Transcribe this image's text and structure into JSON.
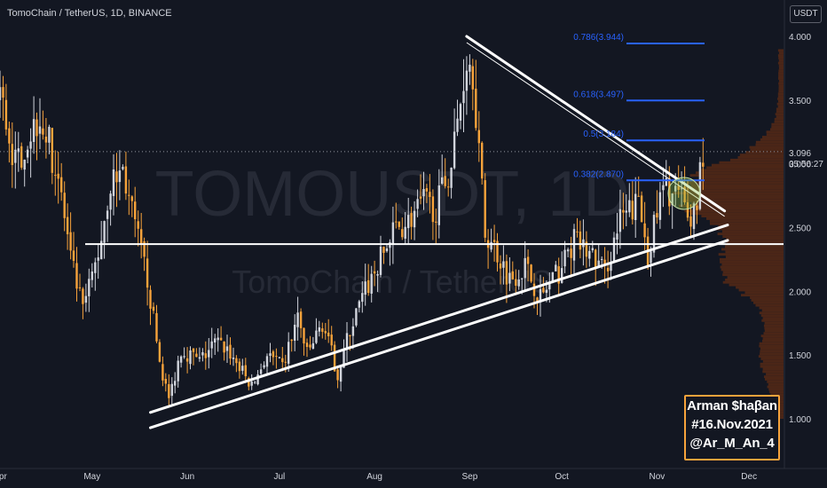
{
  "header": {
    "title": "TomoChain / TetherUS, 1D, BINANCE",
    "currency": "USDT"
  },
  "watermark": {
    "symbol": "TOMOUSDT, 1D",
    "name": "TomoChain / TetherUS"
  },
  "price_label": {
    "value": "3.096",
    "countdown": "05:56:27"
  },
  "signature": {
    "line1": "Arman $haβan",
    "line2": "#16.Nov.2021",
    "line3": "@Ar_M_An_4"
  },
  "colors": {
    "background": "#131722",
    "up": "#d1d4dc",
    "down": "#f7a33b",
    "fib": "#2962ff",
    "profile": "#5a2a15",
    "trend": "#ffffff"
  },
  "chart_data": {
    "type": "candlestick",
    "title": "TomoChain / TetherUS, 1D, BINANCE",
    "y_axis": {
      "ticks": [
        "4.000",
        "3.500",
        "3.000",
        "2.500",
        "2.000",
        "1.500",
        "1.000"
      ],
      "ylim": [
        0.7,
        4.4
      ],
      "unit": "USDT"
    },
    "x_axis": {
      "ticks": [
        "Apr",
        "May",
        "Jun",
        "Jul",
        "Aug",
        "Sep",
        "Oct",
        "Nov",
        "Dec"
      ]
    },
    "fib_levels": [
      {
        "label": "0.786(3.944)",
        "value": 3.944
      },
      {
        "label": "0.618(3.497)",
        "value": 3.497
      },
      {
        "label": "0.5(3.184)",
        "value": 3.184
      },
      {
        "label": "0.382(2.870)",
        "value": 2.87
      }
    ],
    "horizontal_level": 2.37,
    "last_price": 3.096,
    "trend_lines": [
      {
        "name": "support-outer",
        "from": [
          "2021-05-20",
          0.93
        ],
        "to": [
          "2021-11-24",
          2.4
        ]
      },
      {
        "name": "support-inner",
        "from": [
          "2021-05-20",
          1.05
        ],
        "to": [
          "2021-11-24",
          2.52
        ]
      },
      {
        "name": "resistance",
        "from": [
          "2021-08-31",
          4.0
        ],
        "to": [
          "2021-11-23",
          2.63
        ]
      }
    ],
    "anchors": [
      [
        "2021-03-24",
        3.3
      ],
      [
        "2021-04-01",
        3.55
      ],
      [
        "2021-04-06",
        3.0
      ],
      [
        "2021-04-14",
        3.4
      ],
      [
        "2021-04-20",
        2.9
      ],
      [
        "2021-04-24",
        2.25
      ],
      [
        "2021-04-28",
        1.85
      ],
      [
        "2021-05-03",
        2.3
      ],
      [
        "2021-05-07",
        2.85
      ],
      [
        "2021-05-11",
        2.95
      ],
      [
        "2021-05-15",
        2.5
      ],
      [
        "2021-05-19",
        2.1
      ],
      [
        "2021-05-23",
        1.45
      ],
      [
        "2021-05-26",
        1.15
      ],
      [
        "2021-05-30",
        1.55
      ],
      [
        "2021-06-05",
        1.45
      ],
      [
        "2021-06-10",
        1.6
      ],
      [
        "2021-06-14",
        1.55
      ],
      [
        "2021-06-18",
        1.4
      ],
      [
        "2021-06-22",
        1.25
      ],
      [
        "2021-06-27",
        1.5
      ],
      [
        "2021-07-02",
        1.4
      ],
      [
        "2021-07-07",
        1.8
      ],
      [
        "2021-07-10",
        1.5
      ],
      [
        "2021-07-15",
        1.75
      ],
      [
        "2021-07-20",
        1.35
      ],
      [
        "2021-07-24",
        1.7
      ],
      [
        "2021-07-29",
        2.0
      ],
      [
        "2021-08-03",
        2.25
      ],
      [
        "2021-08-08",
        2.5
      ],
      [
        "2021-08-12",
        2.55
      ],
      [
        "2021-08-17",
        2.7
      ],
      [
        "2021-08-21",
        2.65
      ],
      [
        "2021-08-26",
        3.0
      ],
      [
        "2021-08-29",
        3.5
      ],
      [
        "2021-08-31",
        3.85
      ],
      [
        "2021-09-02",
        3.75
      ],
      [
        "2021-09-06",
        2.45
      ],
      [
        "2021-09-09",
        2.35
      ],
      [
        "2021-09-14",
        2.1
      ],
      [
        "2021-09-19",
        2.2
      ],
      [
        "2021-09-24",
        1.95
      ],
      [
        "2021-09-30",
        2.15
      ],
      [
        "2021-10-05",
        2.4
      ],
      [
        "2021-10-10",
        2.3
      ],
      [
        "2021-10-15",
        2.15
      ],
      [
        "2021-10-20",
        2.55
      ],
      [
        "2021-10-26",
        2.7
      ],
      [
        "2021-10-29",
        2.3
      ],
      [
        "2021-11-03",
        2.8
      ],
      [
        "2021-11-08",
        2.75
      ],
      [
        "2021-11-12",
        2.55
      ],
      [
        "2021-11-14",
        2.75
      ],
      [
        "2021-11-16",
        3.1
      ]
    ]
  }
}
